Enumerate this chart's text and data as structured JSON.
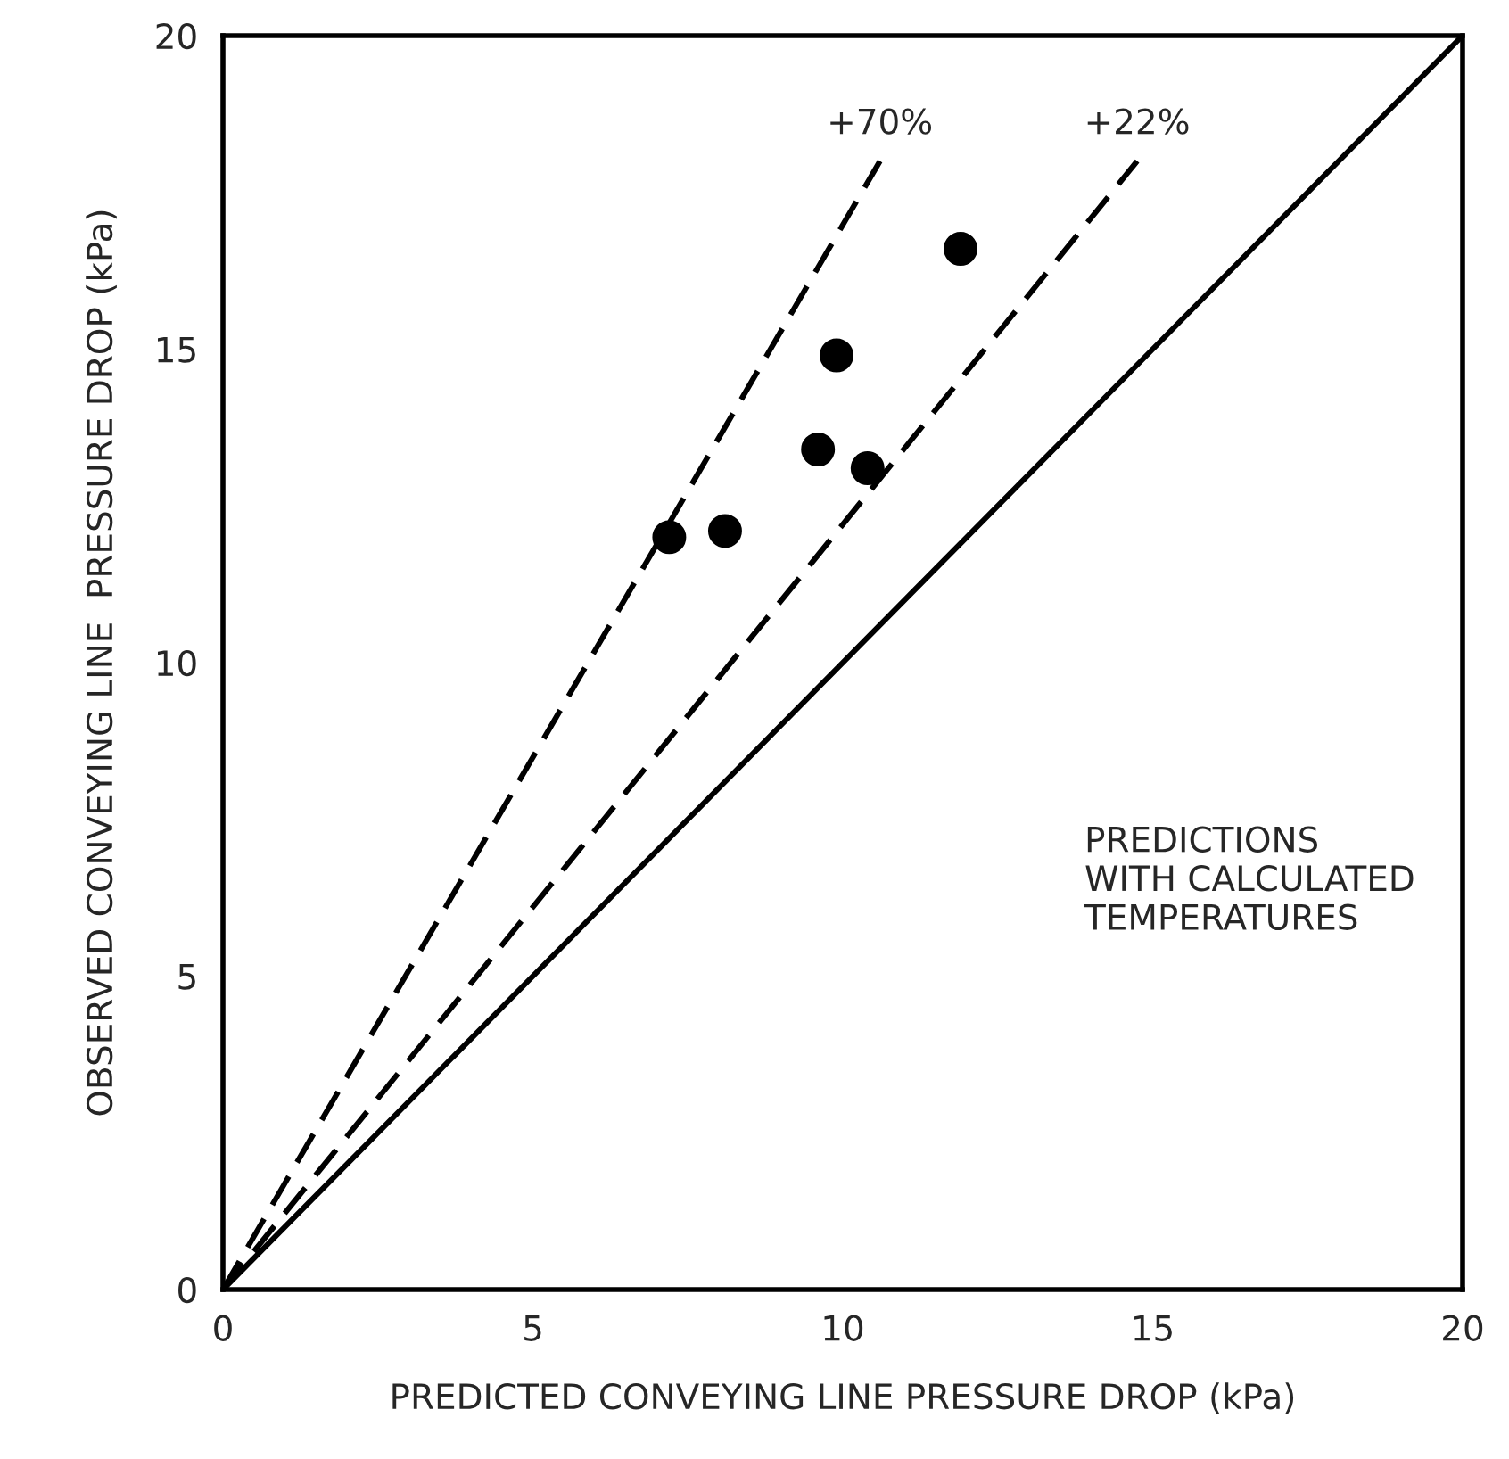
{
  "chart_data": {
    "type": "scatter",
    "xlabel": "PREDICTED CONVEYING LINE PRESSURE DROP (kPa)",
    "ylabel": "OBSERVED CONVEYING LINE  PRESSURE DROP (kPa)",
    "xlim": [
      0,
      20
    ],
    "ylim": [
      0,
      20
    ],
    "xticks": [
      0,
      5,
      10,
      15,
      20
    ],
    "yticks": [
      0,
      5,
      10,
      15,
      20
    ],
    "grid": false,
    "legend": false,
    "marker": "circle",
    "series": [
      {
        "color": "#000000",
        "x": [
          7.2,
          8.1,
          9.6,
          10.4,
          9.9,
          11.9
        ],
        "values": [
          12.0,
          12.1,
          13.4,
          13.1,
          14.9,
          16.6
        ]
      },
      {
        "type": "line",
        "color": "#000000",
        "line_style": "solid",
        "marker": "none",
        "x": [
          0,
          20
        ],
        "values": [
          0,
          20
        ]
      },
      {
        "type": "line",
        "color": "#000000",
        "line_style": "dashed",
        "marker": "none",
        "x": [
          0,
          14.75
        ],
        "values": [
          0,
          18
        ]
      },
      {
        "type": "line",
        "color": "#000000",
        "line_style": "dashed",
        "marker": "none",
        "x": [
          0,
          10.6
        ],
        "values": [
          0,
          18
        ]
      }
    ],
    "annotations": [
      {
        "text": "+70%",
        "x": 10.6,
        "y": 18
      },
      {
        "text": "+22%",
        "x": 14.75,
        "y": 18
      },
      "PREDICTIONS\nWITH CALCULATED\nTEMPERATURES"
    ]
  }
}
